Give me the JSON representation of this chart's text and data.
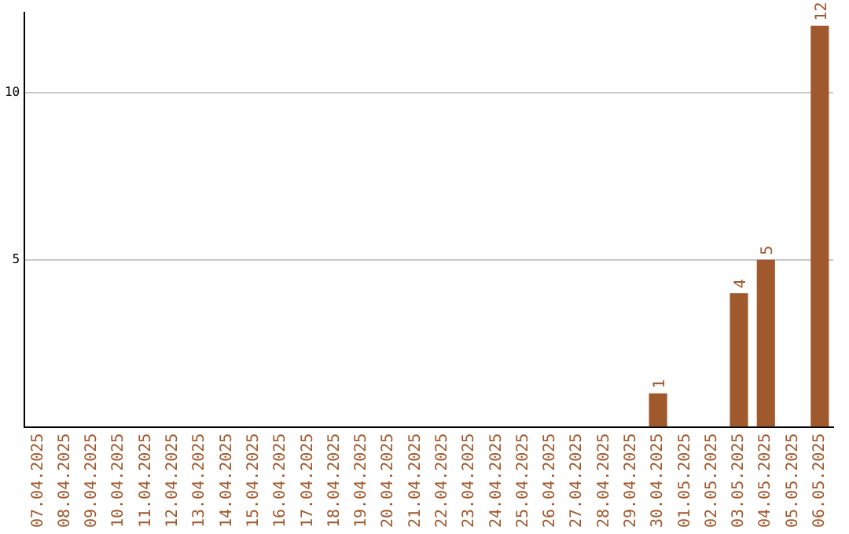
{
  "chart_data": {
    "type": "bar",
    "categories": [
      "07.04.2025",
      "08.04.2025",
      "09.04.2025",
      "10.04.2025",
      "11.04.2025",
      "12.04.2025",
      "13.04.2025",
      "14.04.2025",
      "15.04.2025",
      "16.04.2025",
      "17.04.2025",
      "18.04.2025",
      "19.04.2025",
      "20.04.2025",
      "21.04.2025",
      "22.04.2025",
      "23.04.2025",
      "24.04.2025",
      "25.04.2025",
      "26.04.2025",
      "27.04.2025",
      "28.04.2025",
      "29.04.2025",
      "30.04.2025",
      "01.05.2025",
      "02.05.2025",
      "03.05.2025",
      "04.05.2025",
      "05.05.2025",
      "06.05.2025"
    ],
    "values": [
      0,
      0,
      0,
      0,
      0,
      0,
      0,
      0,
      0,
      0,
      0,
      0,
      0,
      0,
      0,
      0,
      0,
      0,
      0,
      0,
      0,
      0,
      0,
      1,
      0,
      0,
      4,
      5,
      0,
      12
    ],
    "value_labels": [
      null,
      null,
      null,
      null,
      null,
      null,
      null,
      null,
      null,
      null,
      null,
      null,
      null,
      null,
      null,
      null,
      null,
      null,
      null,
      null,
      null,
      null,
      null,
      "1",
      null,
      null,
      "4",
      "5",
      null,
      "12"
    ],
    "color": "#a0592d",
    "ylim": [
      0,
      12.4
    ],
    "yticks": [
      5,
      10
    ],
    "grid": "y",
    "legend": false
  }
}
